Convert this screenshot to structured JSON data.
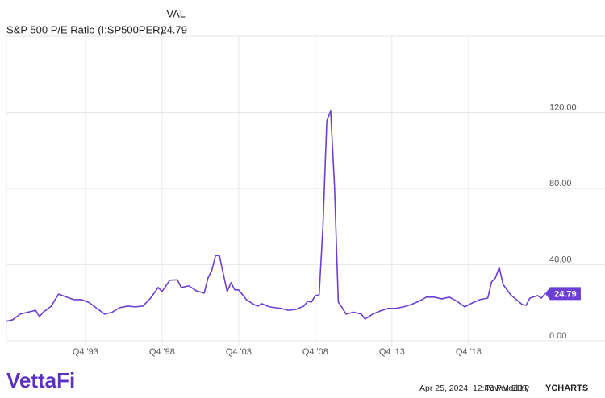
{
  "chart_data": {
    "type": "line",
    "legend_header": "VAL",
    "x": [
      1988.6,
      1989.0,
      1989.5,
      1990.0,
      1990.5,
      1990.75,
      1991.0,
      1991.5,
      1992.0,
      1992.5,
      1993.0,
      1993.5,
      1994.0,
      1994.5,
      1995.0,
      1995.5,
      1996.0,
      1996.5,
      1997.0,
      1997.5,
      1998.0,
      1998.5,
      1998.75,
      1999.25,
      1999.75,
      2000.0,
      2000.5,
      2001.0,
      2001.5,
      2001.75,
      2002.0,
      2002.25,
      2002.5,
      2002.75,
      2003.0,
      2003.25,
      2003.5,
      2003.75,
      2004.25,
      2004.75,
      2005.0,
      2005.25,
      2005.75,
      2006.5,
      2007.0,
      2007.5,
      2008.0,
      2008.25,
      2008.5,
      2008.75,
      2009.0,
      2009.25,
      2009.5,
      2009.75,
      2010.0,
      2010.25,
      2010.5,
      2010.75,
      2011.25,
      2011.75,
      2012.0,
      2012.5,
      2013.0,
      2013.5,
      2014.0,
      2014.5,
      2015.0,
      2015.5,
      2016.0,
      2016.5,
      2017.0,
      2017.5,
      2018.0,
      2018.5,
      2019.0,
      2019.5,
      2020.0,
      2020.25,
      2020.5,
      2020.75,
      2021.0,
      2021.5,
      2021.75,
      2022.25,
      2022.5,
      2022.75,
      2023.25,
      2023.5,
      2023.75
    ],
    "series": [
      {
        "name": "S&P 500 P/E Ratio (I:SP500PER)",
        "color": "#6b3fd6",
        "values": [
          10.2,
          11,
          14,
          15,
          16,
          12.7,
          15,
          18,
          24.5,
          23,
          21.6,
          21.6,
          20,
          17,
          14,
          15,
          17.4,
          18.2,
          17.8,
          18.2,
          22.4,
          28,
          25.8,
          31.8,
          32,
          28,
          28.8,
          26.2,
          25,
          33,
          37,
          44.9,
          44.5,
          35,
          25.8,
          30.5,
          26.7,
          26.7,
          21.6,
          19,
          18.2,
          19.5,
          17.8,
          17,
          16,
          16.5,
          18.2,
          20.7,
          20.3,
          23.7,
          24.1,
          60.5,
          115.6,
          120.7,
          81.7,
          20.3,
          17.4,
          14,
          15,
          14,
          11.4,
          14,
          15.7,
          17,
          17,
          17.8,
          19,
          20.7,
          22.9,
          22.9,
          22,
          22.9,
          20.7,
          17.8,
          19.9,
          21.6,
          22.4,
          30.9,
          33,
          38.5,
          29.6,
          24.1,
          22.4,
          19,
          18.6,
          22.4,
          23.7,
          22.4,
          24.79
        ]
      }
    ],
    "xlim": [
      1988.6,
      2027.65
    ],
    "xticks": [
      {
        "value": 1993.75,
        "label": "Q4 '93"
      },
      {
        "value": 1998.75,
        "label": "Q4 '98"
      },
      {
        "value": 2003.75,
        "label": "Q4 '03"
      },
      {
        "value": 2008.75,
        "label": "Q4 '08"
      },
      {
        "value": 2013.75,
        "label": "Q4 '13"
      },
      {
        "value": 2018.75,
        "label": "Q4 '18"
      }
    ],
    "ylim": [
      -3,
      160
    ],
    "yticks": [
      {
        "value": 0,
        "label": "0.00"
      },
      {
        "value": 40,
        "label": "40.00"
      },
      {
        "value": 80,
        "label": "80.00"
      },
      {
        "value": 120,
        "label": "120.00"
      }
    ],
    "grid": true
  },
  "footer": {
    "logo": "VettaFi",
    "timestamp": "Apr 25, 2024, 12:43 PM EDT",
    "powered_by": "Powered by",
    "brand": "YCHARTS"
  }
}
